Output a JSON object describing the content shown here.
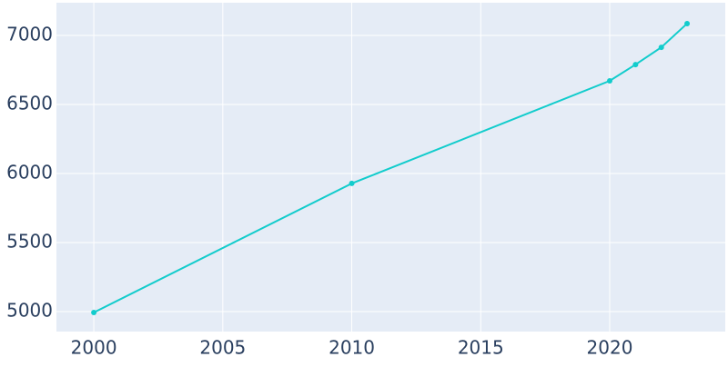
{
  "chart_data": {
    "type": "line",
    "x": [
      2000,
      2010,
      2020,
      2021,
      2022,
      2023
    ],
    "series": [
      {
        "color": "#12cccc",
        "values": [
          4993,
          5928,
          6671,
          6789,
          6914,
          7086
        ]
      }
    ],
    "xlim": [
      1998.55,
      2024.48
    ],
    "xticks": [
      2000,
      2005,
      2010,
      2015,
      2020
    ],
    "ylim": [
      4855,
      7237
    ],
    "yticks": [
      5000,
      5500,
      6000,
      6500,
      7000
    ],
    "grid": true
  }
}
